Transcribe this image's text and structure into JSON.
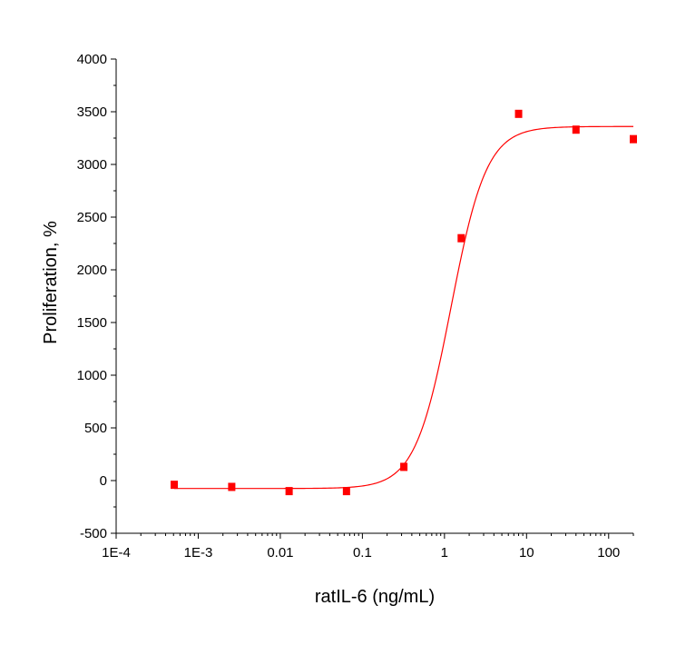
{
  "chart_data": {
    "type": "scatter",
    "title": "",
    "xlabel": "ratIL-6 (ng/mL)",
    "ylabel": "Proliferation, %",
    "x_scale": "log",
    "xlim": [
      0.0001,
      200
    ],
    "ylim": [
      -500,
      4000
    ],
    "x_ticks": [
      0.0001,
      0.001,
      0.01,
      0.1,
      1,
      10,
      100
    ],
    "x_tick_labels": [
      "1E-4",
      "1E-3",
      "0.01",
      "0.1",
      "1",
      "10",
      "100"
    ],
    "y_ticks": [
      -500,
      0,
      500,
      1000,
      1500,
      2000,
      2500,
      3000,
      3500,
      4000
    ],
    "y_tick_labels": [
      "-500",
      "0",
      "500",
      "1000",
      "1500",
      "2000",
      "2500",
      "3000",
      "3500",
      "4000"
    ],
    "grid": false,
    "marker_color": "#ff0000",
    "fit_color": "#ff0000",
    "series": [
      {
        "points": [
          {
            "x": 0.00051,
            "y": -40
          },
          {
            "x": 0.00256,
            "y": -60
          },
          {
            "x": 0.0128,
            "y": -100
          },
          {
            "x": 0.064,
            "y": -100
          },
          {
            "x": 0.32,
            "y": 130
          },
          {
            "x": 1.6,
            "y": 2300
          },
          {
            "x": 8,
            "y": 3480
          },
          {
            "x": 40,
            "y": 3330
          },
          {
            "x": 200,
            "y": 3240
          }
        ]
      }
    ],
    "fit_curve": {
      "type": "four-parameter-logistic",
      "bottom": -75,
      "top": 3360,
      "ec50": 1.2,
      "hill": 2.0
    }
  }
}
